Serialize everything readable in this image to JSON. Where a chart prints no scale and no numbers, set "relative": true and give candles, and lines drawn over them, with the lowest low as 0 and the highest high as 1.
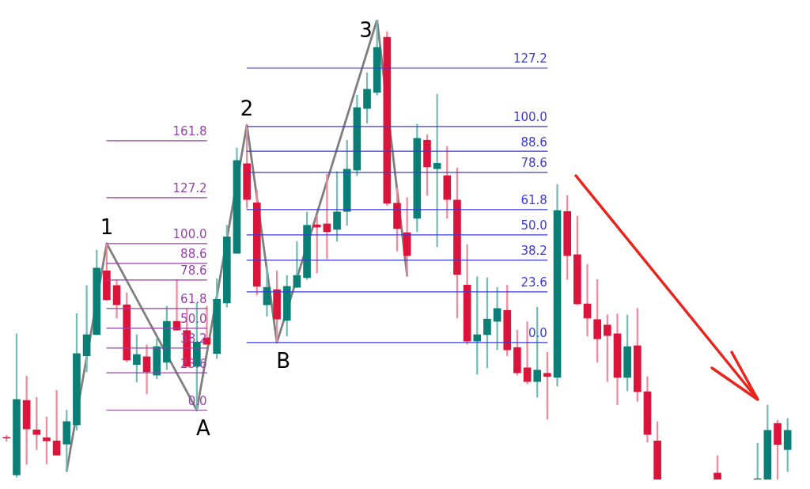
{
  "chart_data": {
    "type": "candlestick",
    "relative": true,
    "categories": [
      null,
      null,
      null,
      null,
      null,
      null,
      null,
      null,
      null,
      null,
      null,
      null,
      null,
      null,
      null,
      null,
      null,
      null,
      null,
      null,
      null,
      null,
      null,
      null,
      null,
      null,
      null,
      null,
      null,
      null,
      null,
      null,
      null,
      null,
      null,
      null,
      null,
      null,
      null,
      null,
      null,
      null,
      null,
      null,
      null,
      null,
      null,
      null,
      null,
      null,
      null,
      null,
      null,
      null,
      null,
      null,
      null,
      null,
      null,
      null,
      null,
      null,
      null,
      null,
      null,
      null,
      null,
      null,
      null,
      null,
      null,
      null,
      null,
      null,
      null,
      null,
      null,
      null,
      null
    ],
    "ohlc": [
      [
        0.091,
        0.096,
        0.083,
        0.09
      ],
      [
        0.01,
        0.317,
        0.005,
        0.174
      ],
      [
        0.172,
        0.225,
        0.033,
        0.11
      ],
      [
        0.108,
        0.179,
        0.065,
        0.098
      ],
      [
        0.091,
        0.136,
        0.034,
        0.084
      ],
      [
        0.084,
        0.194,
        0.053,
        0.053
      ],
      [
        0.077,
        0.151,
        0.019,
        0.126
      ],
      [
        0.119,
        0.361,
        0.107,
        0.274
      ],
      [
        0.269,
        0.422,
        0.234,
        0.315
      ],
      [
        0.315,
        0.499,
        0.315,
        0.46
      ],
      [
        0.454,
        0.513,
        0.389,
        0.391
      ],
      [
        0.422,
        0.434,
        0.351,
        0.38
      ],
      [
        0.38,
        0.406,
        0.256,
        0.26
      ],
      [
        0.25,
        0.315,
        0.212,
        0.272
      ],
      [
        0.267,
        0.293,
        0.186,
        0.234
      ],
      [
        0.227,
        0.306,
        0.219,
        0.289
      ],
      [
        0.255,
        0.377,
        0.239,
        0.344
      ],
      [
        0.344,
        0.435,
        0.325,
        0.325
      ],
      [
        0.324,
        0.372,
        0.246,
        0.246
      ],
      [
        0.246,
        0.384,
        0.151,
        0.299
      ],
      [
        0.308,
        0.377,
        0.294,
        0.294
      ],
      [
        0.274,
        0.437,
        0.263,
        0.392
      ],
      [
        0.384,
        0.553,
        0.375,
        0.528
      ],
      [
        0.492,
        0.721,
        0.492,
        0.694
      ],
      [
        0.687,
        0.771,
        0.59,
        0.609
      ],
      [
        0.602,
        0.63,
        0.401,
        0.42
      ],
      [
        0.38,
        0.463,
        0.355,
        0.418
      ],
      [
        0.413,
        0.454,
        0.298,
        0.349
      ],
      [
        0.346,
        0.444,
        0.312,
        0.42
      ],
      [
        0.418,
        0.518,
        0.418,
        0.444
      ],
      [
        0.439,
        0.582,
        0.435,
        0.553
      ],
      [
        0.554,
        0.573,
        0.449,
        0.549
      ],
      [
        0.556,
        0.664,
        0.48,
        0.539
      ],
      [
        0.544,
        0.67,
        0.518,
        0.582
      ],
      [
        0.583,
        0.738,
        0.553,
        0.675
      ],
      [
        0.673,
        0.836,
        0.661,
        0.809
      ],
      [
        0.807,
        0.885,
        0.775,
        0.849
      ],
      [
        0.842,
        1,
        0.836,
        0.94
      ],
      [
        0.962,
        0.974,
        0.596,
        0.601
      ],
      [
        0.601,
        0.635,
        0.497,
        0.546
      ],
      [
        0.537,
        0.613,
        0.444,
        0.487
      ],
      [
        0.568,
        0.773,
        0.539,
        0.742
      ],
      [
        0.738,
        0.75,
        0.618,
        0.68
      ],
      [
        0.676,
        0.838,
        0.506,
        0.688
      ],
      [
        0.661,
        0.725,
        0.568,
        0.609
      ],
      [
        0.608,
        0.678,
        0.351,
        0.446
      ],
      [
        0.423,
        0.511,
        0.294,
        0.301
      ],
      [
        0.301,
        0.441,
        0.229,
        0.315
      ],
      [
        0.315,
        0.439,
        0.243,
        0.349
      ],
      [
        0.344,
        0.418,
        0.282,
        0.372
      ],
      [
        0.368,
        0.423,
        0.269,
        0.282
      ],
      [
        0.287,
        0.325,
        0.227,
        0.232
      ],
      [
        0.243,
        0.343,
        0.208,
        0.213
      ],
      [
        0.213,
        0.375,
        0.179,
        0.238
      ],
      [
        0.231,
        0.277,
        0.131,
        0.224
      ],
      [
        0.222,
        0.642,
        0.203,
        0.585
      ],
      [
        0.583,
        0.618,
        0.435,
        0.487
      ],
      [
        0.489,
        0.573,
        0.38,
        0.382
      ],
      [
        0.382,
        0.468,
        0.312,
        0.351
      ],
      [
        0.348,
        0.435,
        0.255,
        0.306
      ],
      [
        0.336,
        0.358,
        0.213,
        0.313
      ],
      [
        0.317,
        0.36,
        0.162,
        0.222
      ],
      [
        0.222,
        0.358,
        0.193,
        0.289
      ],
      [
        0.291,
        0.372,
        0.17,
        0.191
      ],
      [
        0.191,
        0.224,
        0.081,
        0.098
      ],
      [
        0.084,
        0.126,
        0,
        0
      ],
      null,
      null,
      null,
      null,
      null,
      [
        0.014,
        0.052,
        0,
        0
      ],
      null,
      null,
      null,
      [
        0,
        0.079,
        0,
        0
      ],
      [
        0,
        0.162,
        0,
        0.107
      ],
      [
        0.122,
        0.129,
        0,
        0.076
      ],
      [
        0.065,
        0.133,
        0.017,
        0.107
      ]
    ],
    "series": [
      {
        "type": "line",
        "color": "#7f7f7f",
        "values": [
          null,
          null,
          null,
          null,
          null,
          null,
          0.019,
          null,
          null,
          null,
          0.513,
          null,
          null,
          null,
          null,
          null,
          null,
          null,
          null,
          0.151,
          null,
          null,
          null,
          null,
          0.771,
          null,
          null,
          0.298,
          null,
          null,
          null,
          null,
          null,
          null,
          null,
          null,
          null,
          1,
          null,
          null,
          0.444,
          null,
          null,
          null,
          null,
          null,
          null,
          null,
          null,
          null,
          null,
          null,
          null,
          null,
          null,
          null,
          null,
          null,
          null,
          null,
          null,
          null,
          null,
          null,
          null,
          null,
          null,
          null,
          null,
          null,
          null,
          null,
          null,
          null,
          null,
          null,
          null,
          null,
          null
        ]
      },
      {
        "type": "line",
        "name": "161.8",
        "color": "#9b3fae",
        "values": [
          null,
          null,
          null,
          null,
          null,
          null,
          null,
          null,
          null,
          null,
          0.737,
          null,
          null,
          null,
          null,
          null,
          null,
          null,
          null,
          null,
          0.737,
          null,
          null,
          null,
          null,
          null,
          null,
          null,
          null,
          null,
          null,
          null,
          null,
          null,
          null,
          null,
          null,
          null,
          null,
          null,
          null,
          null,
          null,
          null,
          null,
          null,
          null,
          null,
          null,
          null,
          null,
          null,
          null,
          null,
          null,
          null,
          null,
          null,
          null,
          null,
          null,
          null,
          null,
          null,
          null,
          null,
          null,
          null,
          null,
          null,
          null,
          null,
          null,
          null,
          null,
          null,
          null,
          null,
          null
        ]
      },
      {
        "type": "line",
        "name": "127.2",
        "color": "#9b3fae",
        "values": [
          null,
          null,
          null,
          null,
          null,
          null,
          null,
          null,
          null,
          null,
          0.613,
          null,
          null,
          null,
          null,
          null,
          null,
          null,
          null,
          null,
          0.613,
          null,
          null,
          null,
          null,
          null,
          null,
          null,
          null,
          null,
          null,
          null,
          null,
          null,
          null,
          null,
          null,
          null,
          null,
          null,
          null,
          null,
          null,
          null,
          null,
          null,
          null,
          null,
          null,
          null,
          null,
          null,
          null,
          null,
          null,
          null,
          null,
          null,
          null,
          null,
          null,
          null,
          null,
          null,
          null,
          null,
          null,
          null,
          null,
          null,
          null,
          null,
          null,
          null,
          null,
          null,
          null,
          null,
          null
        ]
      },
      {
        "type": "line",
        "name": "100.0",
        "color": "#9b3fae",
        "values": [
          null,
          null,
          null,
          null,
          null,
          null,
          null,
          null,
          null,
          null,
          0.513,
          null,
          null,
          null,
          null,
          null,
          null,
          null,
          null,
          null,
          0.513,
          null,
          null,
          null,
          null,
          null,
          null,
          null,
          null,
          null,
          null,
          null,
          null,
          null,
          null,
          null,
          null,
          null,
          null,
          null,
          null,
          null,
          null,
          null,
          null,
          null,
          null,
          null,
          null,
          null,
          null,
          null,
          null,
          null,
          null,
          null,
          null,
          null,
          null,
          null,
          null,
          null,
          null,
          null,
          null,
          null,
          null,
          null,
          null,
          null,
          null,
          null,
          null,
          null,
          null,
          null,
          null,
          null,
          null
        ]
      },
      {
        "type": "line",
        "name": "88.6",
        "color": "#9b3fae",
        "values": [
          null,
          null,
          null,
          null,
          null,
          null,
          null,
          null,
          null,
          null,
          0.47,
          null,
          null,
          null,
          null,
          null,
          null,
          null,
          null,
          null,
          0.47,
          null,
          null,
          null,
          null,
          null,
          null,
          null,
          null,
          null,
          null,
          null,
          null,
          null,
          null,
          null,
          null,
          null,
          null,
          null,
          null,
          null,
          null,
          null,
          null,
          null,
          null,
          null,
          null,
          null,
          null,
          null,
          null,
          null,
          null,
          null,
          null,
          null,
          null,
          null,
          null,
          null,
          null,
          null,
          null,
          null,
          null,
          null,
          null,
          null,
          null,
          null,
          null,
          null,
          null,
          null,
          null,
          null,
          null
        ]
      },
      {
        "type": "line",
        "name": "78.6",
        "color": "#9b3fae",
        "values": [
          null,
          null,
          null,
          null,
          null,
          null,
          null,
          null,
          null,
          null,
          0.434,
          null,
          null,
          null,
          null,
          null,
          null,
          null,
          null,
          null,
          0.434,
          null,
          null,
          null,
          null,
          null,
          null,
          null,
          null,
          null,
          null,
          null,
          null,
          null,
          null,
          null,
          null,
          null,
          null,
          null,
          null,
          null,
          null,
          null,
          null,
          null,
          null,
          null,
          null,
          null,
          null,
          null,
          null,
          null,
          null,
          null,
          null,
          null,
          null,
          null,
          null,
          null,
          null,
          null,
          null,
          null,
          null,
          null,
          null,
          null,
          null,
          null,
          null,
          null,
          null,
          null,
          null,
          null,
          null
        ]
      },
      {
        "type": "line",
        "name": "61.8",
        "color": "#9b3fae",
        "values": [
          null,
          null,
          null,
          null,
          null,
          null,
          null,
          null,
          null,
          null,
          0.372,
          null,
          null,
          null,
          null,
          null,
          null,
          null,
          null,
          null,
          0.372,
          null,
          null,
          null,
          null,
          null,
          null,
          null,
          null,
          null,
          null,
          null,
          null,
          null,
          null,
          null,
          null,
          null,
          null,
          null,
          null,
          null,
          null,
          null,
          null,
          null,
          null,
          null,
          null,
          null,
          null,
          null,
          null,
          null,
          null,
          null,
          null,
          null,
          null,
          null,
          null,
          null,
          null,
          null,
          null,
          null,
          null,
          null,
          null,
          null,
          null,
          null,
          null,
          null,
          null,
          null,
          null,
          null,
          null
        ]
      },
      {
        "type": "line",
        "name": "50.0",
        "color": "#9b3fae",
        "values": [
          null,
          null,
          null,
          null,
          null,
          null,
          null,
          null,
          null,
          null,
          0.329,
          null,
          null,
          null,
          null,
          null,
          null,
          null,
          null,
          null,
          0.329,
          null,
          null,
          null,
          null,
          null,
          null,
          null,
          null,
          null,
          null,
          null,
          null,
          null,
          null,
          null,
          null,
          null,
          null,
          null,
          null,
          null,
          null,
          null,
          null,
          null,
          null,
          null,
          null,
          null,
          null,
          null,
          null,
          null,
          null,
          null,
          null,
          null,
          null,
          null,
          null,
          null,
          null,
          null,
          null,
          null,
          null,
          null,
          null,
          null,
          null,
          null,
          null,
          null,
          null,
          null,
          null,
          null,
          null
        ]
      },
      {
        "type": "line",
        "name": "38.2",
        "color": "#9b3fae",
        "values": [
          null,
          null,
          null,
          null,
          null,
          null,
          null,
          null,
          null,
          null,
          0.286,
          null,
          null,
          null,
          null,
          null,
          null,
          null,
          null,
          null,
          0.286,
          null,
          null,
          null,
          null,
          null,
          null,
          null,
          null,
          null,
          null,
          null,
          null,
          null,
          null,
          null,
          null,
          null,
          null,
          null,
          null,
          null,
          null,
          null,
          null,
          null,
          null,
          null,
          null,
          null,
          null,
          null,
          null,
          null,
          null,
          null,
          null,
          null,
          null,
          null,
          null,
          null,
          null,
          null,
          null,
          null,
          null,
          null,
          null,
          null,
          null,
          null,
          null,
          null,
          null,
          null,
          null,
          null,
          null
        ]
      },
      {
        "type": "line",
        "name": "23.6",
        "color": "#9b3fae",
        "values": [
          null,
          null,
          null,
          null,
          null,
          null,
          null,
          null,
          null,
          null,
          0.232,
          null,
          null,
          null,
          null,
          null,
          null,
          null,
          null,
          null,
          0.232,
          null,
          null,
          null,
          null,
          null,
          null,
          null,
          null,
          null,
          null,
          null,
          null,
          null,
          null,
          null,
          null,
          null,
          null,
          null,
          null,
          null,
          null,
          null,
          null,
          null,
          null,
          null,
          null,
          null,
          null,
          null,
          null,
          null,
          null,
          null,
          null,
          null,
          null,
          null,
          null,
          null,
          null,
          null,
          null,
          null,
          null,
          null,
          null,
          null,
          null,
          null,
          null,
          null,
          null,
          null,
          null,
          null,
          null
        ]
      },
      {
        "type": "line",
        "name": "0.0",
        "color": "#9b3fae",
        "values": [
          null,
          null,
          null,
          null,
          null,
          null,
          null,
          null,
          null,
          null,
          0.151,
          null,
          null,
          null,
          null,
          null,
          null,
          null,
          null,
          null,
          0.151,
          null,
          null,
          null,
          null,
          null,
          null,
          null,
          null,
          null,
          null,
          null,
          null,
          null,
          null,
          null,
          null,
          null,
          null,
          null,
          null,
          null,
          null,
          null,
          null,
          null,
          null,
          null,
          null,
          null,
          null,
          null,
          null,
          null,
          null,
          null,
          null,
          null,
          null,
          null,
          null,
          null,
          null,
          null,
          null,
          null,
          null,
          null,
          null,
          null,
          null,
          null,
          null,
          null,
          null,
          null,
          null,
          null,
          null
        ]
      },
      {
        "type": "line",
        "name": "127.2",
        "color": "#3b3bd6",
        "values": [
          null,
          null,
          null,
          null,
          null,
          null,
          null,
          null,
          null,
          null,
          null,
          null,
          null,
          null,
          null,
          null,
          null,
          null,
          null,
          null,
          null,
          null,
          null,
          null,
          0.895,
          null,
          null,
          null,
          null,
          null,
          null,
          null,
          null,
          null,
          null,
          null,
          null,
          null,
          null,
          null,
          null,
          null,
          null,
          null,
          null,
          null,
          null,
          null,
          null,
          null,
          null,
          null,
          null,
          null,
          0.895,
          null,
          null,
          null,
          null,
          null,
          null,
          null,
          null,
          null,
          null,
          null,
          null,
          null,
          null,
          null,
          null,
          null,
          null,
          null,
          null,
          null,
          null,
          null,
          null
        ]
      },
      {
        "type": "line",
        "name": "100.0",
        "color": "#3b3bd6",
        "values": [
          null,
          null,
          null,
          null,
          null,
          null,
          null,
          null,
          null,
          null,
          null,
          null,
          null,
          null,
          null,
          null,
          null,
          null,
          null,
          null,
          null,
          null,
          null,
          null,
          0.768,
          null,
          null,
          null,
          null,
          null,
          null,
          null,
          null,
          null,
          null,
          null,
          null,
          null,
          null,
          null,
          null,
          null,
          null,
          null,
          null,
          null,
          null,
          null,
          null,
          null,
          null,
          null,
          null,
          null,
          0.768,
          null,
          null,
          null,
          null,
          null,
          null,
          null,
          null,
          null,
          null,
          null,
          null,
          null,
          null,
          null,
          null,
          null,
          null,
          null,
          null,
          null,
          null,
          null,
          null
        ]
      },
      {
        "type": "line",
        "name": "88.6",
        "color": "#3b3bd6",
        "values": [
          null,
          null,
          null,
          null,
          null,
          null,
          null,
          null,
          null,
          null,
          null,
          null,
          null,
          null,
          null,
          null,
          null,
          null,
          null,
          null,
          null,
          null,
          null,
          null,
          0.714,
          null,
          null,
          null,
          null,
          null,
          null,
          null,
          null,
          null,
          null,
          null,
          null,
          null,
          null,
          null,
          null,
          null,
          null,
          null,
          null,
          null,
          null,
          null,
          null,
          null,
          null,
          null,
          null,
          null,
          0.714,
          null,
          null,
          null,
          null,
          null,
          null,
          null,
          null,
          null,
          null,
          null,
          null,
          null,
          null,
          null,
          null,
          null,
          null,
          null,
          null,
          null,
          null,
          null,
          null
        ]
      },
      {
        "type": "line",
        "name": "78.6",
        "color": "#3b3bd6",
        "values": [
          null,
          null,
          null,
          null,
          null,
          null,
          null,
          null,
          null,
          null,
          null,
          null,
          null,
          null,
          null,
          null,
          null,
          null,
          null,
          null,
          null,
          null,
          null,
          null,
          0.668,
          null,
          null,
          null,
          null,
          null,
          null,
          null,
          null,
          null,
          null,
          null,
          null,
          null,
          null,
          null,
          null,
          null,
          null,
          null,
          null,
          null,
          null,
          null,
          null,
          null,
          null,
          null,
          null,
          null,
          0.668,
          null,
          null,
          null,
          null,
          null,
          null,
          null,
          null,
          null,
          null,
          null,
          null,
          null,
          null,
          null,
          null,
          null,
          null,
          null,
          null,
          null,
          null,
          null,
          null
        ]
      },
      {
        "type": "line",
        "name": "61.8",
        "color": "#3b3bd6",
        "values": [
          null,
          null,
          null,
          null,
          null,
          null,
          null,
          null,
          null,
          null,
          null,
          null,
          null,
          null,
          null,
          null,
          null,
          null,
          null,
          null,
          null,
          null,
          null,
          null,
          0.587,
          null,
          null,
          null,
          null,
          null,
          null,
          null,
          null,
          null,
          null,
          null,
          null,
          null,
          null,
          null,
          null,
          null,
          null,
          null,
          null,
          null,
          null,
          null,
          null,
          null,
          null,
          null,
          null,
          null,
          0.587,
          null,
          null,
          null,
          null,
          null,
          null,
          null,
          null,
          null,
          null,
          null,
          null,
          null,
          null,
          null,
          null,
          null,
          null,
          null,
          null,
          null,
          null,
          null,
          null
        ]
      },
      {
        "type": "line",
        "name": "50.0",
        "color": "#3b3bd6",
        "values": [
          null,
          null,
          null,
          null,
          null,
          null,
          null,
          null,
          null,
          null,
          null,
          null,
          null,
          null,
          null,
          null,
          null,
          null,
          null,
          null,
          null,
          null,
          null,
          null,
          0.532,
          null,
          null,
          null,
          null,
          null,
          null,
          null,
          null,
          null,
          null,
          null,
          null,
          null,
          null,
          null,
          null,
          null,
          null,
          null,
          null,
          null,
          null,
          null,
          null,
          null,
          null,
          null,
          null,
          null,
          0.532,
          null,
          null,
          null,
          null,
          null,
          null,
          null,
          null,
          null,
          null,
          null,
          null,
          null,
          null,
          null,
          null,
          null,
          null,
          null,
          null,
          null,
          null,
          null,
          null
        ]
      },
      {
        "type": "line",
        "name": "38.2",
        "color": "#3b3bd6",
        "values": [
          null,
          null,
          null,
          null,
          null,
          null,
          null,
          null,
          null,
          null,
          null,
          null,
          null,
          null,
          null,
          null,
          null,
          null,
          null,
          null,
          null,
          null,
          null,
          null,
          0.477,
          null,
          null,
          null,
          null,
          null,
          null,
          null,
          null,
          null,
          null,
          null,
          null,
          null,
          null,
          null,
          null,
          null,
          null,
          null,
          null,
          null,
          null,
          null,
          null,
          null,
          null,
          null,
          null,
          null,
          0.477,
          null,
          null,
          null,
          null,
          null,
          null,
          null,
          null,
          null,
          null,
          null,
          null,
          null,
          null,
          null,
          null,
          null,
          null,
          null,
          null,
          null,
          null,
          null,
          null
        ]
      },
      {
        "type": "line",
        "name": "23.6",
        "color": "#3b3bd6",
        "values": [
          null,
          null,
          null,
          null,
          null,
          null,
          null,
          null,
          null,
          null,
          null,
          null,
          null,
          null,
          null,
          null,
          null,
          null,
          null,
          null,
          null,
          null,
          null,
          null,
          0.408,
          null,
          null,
          null,
          null,
          null,
          null,
          null,
          null,
          null,
          null,
          null,
          null,
          null,
          null,
          null,
          null,
          null,
          null,
          null,
          null,
          null,
          null,
          null,
          null,
          null,
          null,
          null,
          null,
          null,
          0.408,
          null,
          null,
          null,
          null,
          null,
          null,
          null,
          null,
          null,
          null,
          null,
          null,
          null,
          null,
          null,
          null,
          null,
          null,
          null,
          null,
          null,
          null,
          null,
          null
        ]
      },
      {
        "type": "line",
        "name": "0.0",
        "color": "#3b3bd6",
        "values": [
          null,
          null,
          null,
          null,
          null,
          null,
          null,
          null,
          null,
          null,
          null,
          null,
          null,
          null,
          null,
          null,
          null,
          null,
          null,
          null,
          null,
          null,
          null,
          null,
          0.298,
          null,
          null,
          null,
          null,
          null,
          null,
          null,
          null,
          null,
          null,
          null,
          null,
          null,
          null,
          null,
          null,
          null,
          null,
          null,
          null,
          null,
          null,
          null,
          null,
          null,
          null,
          null,
          null,
          null,
          0.298,
          null,
          null,
          null,
          null,
          null,
          null,
          null,
          null,
          null,
          null,
          null,
          null,
          null,
          null,
          null,
          null,
          null,
          null,
          null,
          null,
          null,
          null,
          null,
          null
        ]
      }
    ],
    "annotations": [
      {
        "text": "1",
        "y": 0.513
      },
      {
        "text": "A",
        "y": 0.151
      },
      {
        "text": "2",
        "y": 0.771
      },
      {
        "text": "B",
        "y": 0.298
      },
      "3"
    ],
    "legend": false,
    "marker": "none"
  }
}
